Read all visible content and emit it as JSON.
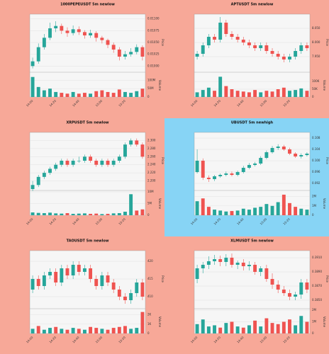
{
  "chart_data": [
    {
      "type": "candlestick",
      "title": "1000PEPEUSDT 5m newlow",
      "background": "#f7a898",
      "up_color": "#26a69a",
      "down_color": "#ef5350",
      "grid": true,
      "ylabel": "Price",
      "y2label": "Volume",
      "categories": [
        "14:00",
        null,
        null,
        null,
        "14:20",
        null,
        null,
        null,
        "14:40",
        null,
        null,
        null,
        "15:00",
        null,
        null,
        null,
        "15:20",
        null,
        null,
        null
      ],
      "open": [
        0.01,
        0.0101,
        0.0104,
        0.0106,
        0.0108,
        0.01085,
        0.01075,
        0.0107,
        0.01078,
        0.01072,
        0.01065,
        0.0107,
        0.0106,
        0.01055,
        0.01045,
        0.01035,
        0.0102,
        0.01025,
        0.0103,
        0.0104
      ],
      "high": [
        0.01018,
        0.01048,
        0.01068,
        0.01092,
        0.01095,
        0.0109,
        0.01082,
        0.01086,
        0.01084,
        0.01076,
        0.01077,
        0.01074,
        0.01064,
        0.01058,
        0.0105,
        0.0104,
        0.01032,
        0.01038,
        0.01046,
        0.01044
      ],
      "low": [
        0.00995,
        0.01005,
        0.01035,
        0.01055,
        0.01072,
        0.01068,
        0.01062,
        0.01065,
        0.01066,
        0.01058,
        0.0106,
        0.01052,
        0.01048,
        0.01038,
        0.01028,
        0.01012,
        0.01014,
        0.0102,
        0.01025,
        0.01012
      ],
      "close": [
        0.0101,
        0.0104,
        0.0106,
        0.0108,
        0.01085,
        0.01075,
        0.0107,
        0.01078,
        0.01072,
        0.01065,
        0.0107,
        0.0106,
        0.01055,
        0.01045,
        0.01035,
        0.0102,
        0.01025,
        0.0103,
        0.0104,
        0.0102
      ],
      "volume": [
        120000000,
        60000000,
        40000000,
        50000000,
        30000000,
        25000000,
        20000000,
        30000000,
        20000000,
        25000000,
        20000000,
        35000000,
        40000000,
        30000000,
        25000000,
        45000000,
        30000000,
        25000000,
        35000000,
        50000000
      ],
      "ylim": [
        0.0099,
        0.0111
      ],
      "yticks": [
        {
          "value": 0.01,
          "label": "0.01000"
        },
        {
          "value": 0.01025,
          "label": "0.01025"
        },
        {
          "value": 0.0105,
          "label": "0.01050"
        },
        {
          "value": 0.01075,
          "label": "0.01075"
        },
        {
          "value": 0.011,
          "label": "0.01100"
        }
      ],
      "y2lim": [
        0,
        140000000
      ],
      "y2ticks": [
        0,
        {
          "value": 50000000,
          "label": "50M"
        },
        {
          "value": 100000000,
          "label": "100M"
        }
      ]
    },
    {
      "type": "candlestick",
      "title": "APTUSDT 5m newlow",
      "background": "#f7a898",
      "up_color": "#26a69a",
      "down_color": "#ef5350",
      "grid": true,
      "ylabel": "Price",
      "y2label": "Volume",
      "categories": [
        "14:00",
        null,
        null,
        null,
        "14:20",
        null,
        null,
        null,
        "14:40",
        null,
        null,
        null,
        "15:00",
        null,
        null,
        null,
        "15:20",
        null,
        null,
        null
      ],
      "open": [
        7.95,
        7.96,
        7.99,
        8.02,
        8.01,
        8.07,
        8.03,
        8.02,
        8.01,
        8.0,
        7.99,
        7.98,
        7.99,
        7.97,
        7.96,
        7.95,
        7.94,
        7.95,
        7.97,
        7.99
      ],
      "high": [
        7.97,
        8.0,
        8.03,
        8.03,
        8.09,
        8.08,
        8.04,
        8.03,
        8.02,
        8.01,
        8.0,
        8.0,
        8.0,
        7.98,
        7.97,
        7.96,
        7.96,
        7.98,
        8.0,
        8.0
      ],
      "low": [
        7.94,
        7.95,
        7.98,
        8.0,
        8.0,
        8.02,
        8.01,
        8.0,
        7.99,
        7.98,
        7.97,
        7.97,
        7.96,
        7.95,
        7.94,
        7.93,
        7.93,
        7.94,
        7.96,
        7.97
      ],
      "close": [
        7.96,
        7.99,
        8.02,
        8.01,
        8.07,
        8.03,
        8.02,
        8.01,
        8.0,
        7.99,
        7.98,
        7.99,
        7.97,
        7.96,
        7.95,
        7.94,
        7.95,
        7.97,
        7.99,
        7.98
      ],
      "volume": [
        30000,
        45000,
        60000,
        40000,
        130000,
        70000,
        50000,
        40000,
        35000,
        30000,
        45000,
        30000,
        40000,
        35000,
        50000,
        60000,
        40000,
        45000,
        55000,
        40000
      ],
      "ylim": [
        7.9,
        8.1
      ],
      "yticks": [
        {
          "value": 7.95,
          "label": "7.950"
        },
        {
          "value": 8,
          "label": "8.000"
        },
        {
          "value": 8.05,
          "label": "8.050"
        }
      ],
      "y2lim": [
        0,
        150000
      ],
      "y2ticks": [
        0,
        {
          "value": 50000,
          "label": "50K"
        },
        {
          "value": 100000,
          "label": "100K"
        }
      ]
    },
    {
      "type": "candlestick",
      "title": "XRPUSDT 5m newlow",
      "background": "#f7a898",
      "up_color": "#26a69a",
      "down_color": "#ef5350",
      "grid": true,
      "ylabel": "Price",
      "y2label": "Volume",
      "categories": [
        "14:00",
        null,
        null,
        null,
        "14:20",
        null,
        null,
        null,
        "14:40",
        null,
        null,
        null,
        "15:00",
        null,
        null,
        null,
        "15:20",
        null,
        null,
        null
      ],
      "open": [
        2.18,
        2.19,
        2.21,
        2.22,
        2.23,
        2.24,
        2.25,
        2.24,
        2.25,
        2.25,
        2.26,
        2.25,
        2.24,
        2.25,
        2.24,
        2.25,
        2.26,
        2.29,
        2.3,
        2.29
      ],
      "high": [
        2.2,
        2.215,
        2.225,
        2.235,
        2.245,
        2.255,
        2.255,
        2.255,
        2.26,
        2.265,
        2.265,
        2.255,
        2.255,
        2.255,
        2.255,
        2.265,
        2.295,
        2.305,
        2.305,
        2.295
      ],
      "low": [
        2.175,
        2.185,
        2.205,
        2.215,
        2.225,
        2.235,
        2.235,
        2.235,
        2.245,
        2.245,
        2.245,
        2.235,
        2.235,
        2.235,
        2.235,
        2.245,
        2.255,
        2.285,
        2.285,
        2.255
      ],
      "close": [
        2.19,
        2.21,
        2.22,
        2.23,
        2.24,
        2.25,
        2.24,
        2.25,
        2.25,
        2.26,
        2.25,
        2.24,
        2.25,
        2.24,
        2.25,
        2.26,
        2.29,
        2.3,
        2.29,
        2.26
      ],
      "volume": [
        1200000,
        1000000,
        900000,
        1100000,
        800000,
        700000,
        900000,
        600000,
        700000,
        800000,
        600000,
        700000,
        500000,
        600000,
        800000,
        900000,
        1500000,
        9000000,
        2000000,
        2500000
      ],
      "ylim": [
        2.18,
        2.32
      ],
      "yticks": [
        {
          "value": 2.2,
          "label": "2.200"
        },
        {
          "value": 2.22,
          "label": "2.220"
        },
        {
          "value": 2.24,
          "label": "2.240"
        },
        {
          "value": 2.26,
          "label": "2.260"
        },
        {
          "value": 2.28,
          "label": "2.280"
        },
        {
          "value": 2.3,
          "label": "2.300"
        }
      ],
      "y2lim": [
        0,
        10000000
      ],
      "y2ticks": [
        0,
        {
          "value": 5000000,
          "label": "5M"
        },
        {
          "value": 10000000,
          "label": "10M"
        }
      ]
    },
    {
      "type": "candlestick",
      "title": "UBUSDT 5m newhigh",
      "background": "#87d4f5",
      "up_color": "#26a69a",
      "down_color": "#ef5350",
      "grid": true,
      "ylabel": "Price",
      "y2label": "Volume",
      "categories": [
        "14:00",
        null,
        null,
        null,
        "14:20",
        null,
        null,
        null,
        "14:40",
        null,
        null,
        null,
        "15:00",
        null,
        null,
        null,
        "15:20",
        null,
        null,
        null
      ],
      "open": [
        0.096,
        0.1,
        0.094,
        0.0935,
        0.0945,
        0.095,
        0.0955,
        0.095,
        0.096,
        0.0975,
        0.0985,
        0.099,
        0.101,
        0.103,
        0.1045,
        0.105,
        0.104,
        0.1025,
        0.1015,
        0.102
      ],
      "high": [
        0.104,
        0.1008,
        0.0948,
        0.095,
        0.0955,
        0.0962,
        0.0962,
        0.0965,
        0.0982,
        0.0992,
        0.0996,
        0.1016,
        0.1036,
        0.1052,
        0.1058,
        0.1056,
        0.1046,
        0.103,
        0.1026,
        0.103
      ],
      "low": [
        0.0955,
        0.0932,
        0.0925,
        0.0928,
        0.094,
        0.0945,
        0.0945,
        0.0945,
        0.0955,
        0.097,
        0.098,
        0.0985,
        0.1005,
        0.1025,
        0.1038,
        0.1035,
        0.102,
        0.101,
        0.1008,
        0.1015
      ],
      "close": [
        0.1,
        0.094,
        0.0935,
        0.0945,
        0.095,
        0.0955,
        0.095,
        0.096,
        0.0975,
        0.0985,
        0.099,
        0.101,
        0.103,
        0.1045,
        0.105,
        0.104,
        0.1025,
        0.1015,
        0.102,
        0.1025
      ],
      "volume": [
        1500000,
        1800000,
        900000,
        600000,
        500000,
        400000,
        450000,
        500000,
        700000,
        600000,
        800000,
        900000,
        1200000,
        1000000,
        1400000,
        2200000,
        1300000,
        900000,
        700000,
        600000
      ],
      "ylim": [
        0.09,
        0.11
      ],
      "yticks": [
        {
          "value": 0.092,
          "label": "0.092"
        },
        {
          "value": 0.096,
          "label": "0.096"
        },
        {
          "value": 0.1,
          "label": "0.100"
        },
        {
          "value": 0.104,
          "label": "0.104"
        },
        {
          "value": 0.108,
          "label": "0.108"
        }
      ],
      "y2lim": [
        0,
        2500000
      ],
      "y2ticks": [
        0,
        {
          "value": 1000000,
          "label": "1M"
        },
        {
          "value": 2000000,
          "label": "2M"
        }
      ]
    },
    {
      "type": "candlestick",
      "title": "TAOUSDT 5m newlow",
      "background": "#f7a898",
      "up_color": "#26a69a",
      "down_color": "#ef5350",
      "grid": true,
      "ylabel": "Price",
      "y2label": "Volume",
      "categories": [
        "14:00",
        null,
        null,
        null,
        "14:20",
        null,
        null,
        null,
        "14:40",
        null,
        null,
        null,
        "15:00",
        null,
        null,
        null,
        "15:20",
        null,
        null,
        null
      ],
      "open": [
        412,
        415,
        413,
        416,
        417,
        414,
        418,
        416,
        419,
        417,
        418,
        415,
        413,
        416,
        414,
        412,
        410,
        409,
        411,
        414
      ],
      "high": [
        416,
        416,
        417,
        418,
        418,
        419,
        419,
        420,
        420,
        419,
        419,
        416,
        417,
        417,
        415,
        413,
        411,
        412,
        415,
        415
      ],
      "low": [
        411,
        412,
        412,
        415,
        413,
        413,
        415,
        415,
        416,
        416,
        414,
        412,
        412,
        413,
        411,
        409,
        408,
        408,
        410,
        409
      ],
      "close": [
        415,
        413,
        416,
        417,
        414,
        418,
        416,
        419,
        417,
        418,
        415,
        413,
        416,
        414,
        412,
        410,
        409,
        411,
        414,
        410
      ],
      "volume": [
        500,
        800,
        400,
        600,
        700,
        500,
        400,
        600,
        500,
        400,
        700,
        600,
        500,
        400,
        600,
        700,
        800,
        500,
        600,
        2300
      ],
      "ylim": [
        407,
        423
      ],
      "yticks": [
        410,
        415,
        420
      ],
      "y2lim": [
        0,
        2500
      ],
      "y2ticks": [
        0,
        {
          "value": 1000,
          "label": "1K"
        },
        {
          "value": 2000,
          "label": "2K"
        }
      ]
    },
    {
      "type": "candlestick",
      "title": "XLMUSDT 5m newlow",
      "background": "#f7a898",
      "up_color": "#26a69a",
      "down_color": "#ef5350",
      "grid": true,
      "ylabel": "Price",
      "y2label": "Volume",
      "categories": [
        "14:00",
        null,
        null,
        null,
        "14:20",
        null,
        null,
        null,
        "14:40",
        null,
        null,
        null,
        "15:00",
        null,
        null,
        null,
        "15:20",
        null,
        null,
        null
      ],
      "open": [
        0.388,
        0.3895,
        0.39,
        0.3905,
        0.3908,
        0.3904,
        0.391,
        0.39,
        0.3903,
        0.3898,
        0.39,
        0.389,
        0.3895,
        0.388,
        0.3872,
        0.3865,
        0.386,
        0.3855,
        0.3858,
        0.3875
      ],
      "high": [
        0.39,
        0.3904,
        0.3912,
        0.3914,
        0.3913,
        0.3915,
        0.3916,
        0.3906,
        0.3908,
        0.3905,
        0.3904,
        0.3898,
        0.39,
        0.3888,
        0.3878,
        0.387,
        0.3865,
        0.3862,
        0.388,
        0.388
      ],
      "low": [
        0.3874,
        0.3888,
        0.3894,
        0.39,
        0.3898,
        0.3898,
        0.3896,
        0.3894,
        0.3892,
        0.3892,
        0.3886,
        0.3884,
        0.3876,
        0.3866,
        0.386,
        0.3856,
        0.385,
        0.385,
        0.3852,
        0.386
      ],
      "close": [
        0.3895,
        0.39,
        0.3905,
        0.3908,
        0.3904,
        0.391,
        0.39,
        0.3903,
        0.3898,
        0.39,
        0.389,
        0.3895,
        0.388,
        0.3872,
        0.3865,
        0.386,
        0.3855,
        0.3858,
        0.3875,
        0.3865
      ],
      "volume": [
        800000,
        1200000,
        600000,
        700000,
        500000,
        900000,
        1000000,
        600000,
        500000,
        700000,
        1100000,
        600000,
        1300000,
        900000,
        800000,
        1000000,
        1200000,
        700000,
        1500000,
        1000000
      ],
      "ylim": [
        0.384,
        0.392
      ],
      "yticks": [
        {
          "value": 0.385,
          "label": "0.3850"
        },
        {
          "value": 0.387,
          "label": "0.3870"
        },
        {
          "value": 0.389,
          "label": "0.3890"
        },
        {
          "value": 0.391,
          "label": "0.3910"
        }
      ],
      "y2lim": [
        0,
        2000000
      ],
      "y2ticks": [
        0,
        {
          "value": 1000000,
          "label": "1M"
        },
        {
          "value": 2000000,
          "label": "2M"
        }
      ]
    }
  ]
}
